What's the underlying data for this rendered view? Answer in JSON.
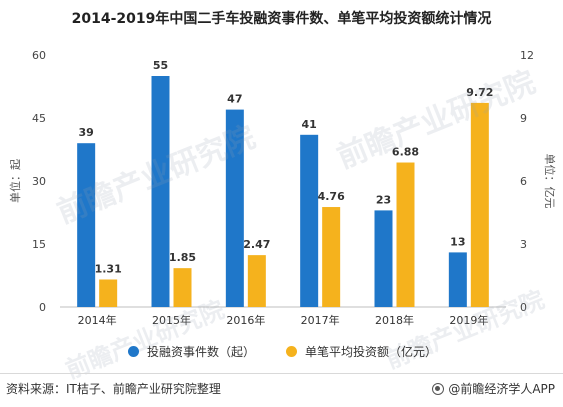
{
  "title": "2014-2019年中国二手车投融资事件数、单笔平均投资额统计情况",
  "chart_data": {
    "type": "bar",
    "categories": [
      "2014年",
      "2015年",
      "2016年",
      "2017年",
      "2018年",
      "2019年"
    ],
    "series": [
      {
        "name": "投融资事件数（起）",
        "axis": "left",
        "color": "#1f77c9",
        "values": [
          39,
          55,
          47,
          41,
          23,
          13
        ],
        "labels": [
          "39",
          "55",
          "47",
          "41",
          "23",
          "13"
        ]
      },
      {
        "name": "单笔平均投资额（亿元）",
        "axis": "right",
        "color": "#f5b21d",
        "values": [
          1.31,
          1.85,
          2.47,
          4.76,
          6.88,
          9.72
        ],
        "labels": [
          "1.31",
          "1.85",
          "2.47",
          "4.76",
          "6.88",
          "9.72"
        ]
      }
    ],
    "y_left": {
      "label": "单位：起",
      "ylim": [
        0,
        60
      ],
      "ticks": [
        "0",
        "15",
        "30",
        "45",
        "60"
      ]
    },
    "y_right": {
      "label": "单位：亿元",
      "ylim": [
        0,
        12
      ],
      "ticks": [
        "0",
        "3",
        "6",
        "9",
        "12"
      ]
    },
    "grid": false,
    "legend_position": "bottom"
  },
  "legend": {
    "items": [
      {
        "label": "投融资事件数（起）",
        "color": "#1f77c9"
      },
      {
        "label": "单笔平均投资额（亿元）",
        "color": "#f5b21d"
      }
    ]
  },
  "footer": {
    "source": "资料来源：IT桔子、前瞻产业研究院整理",
    "brand": "@前瞻经济学人APP"
  },
  "watermark": {
    "text": "前瞻产业研究院"
  }
}
